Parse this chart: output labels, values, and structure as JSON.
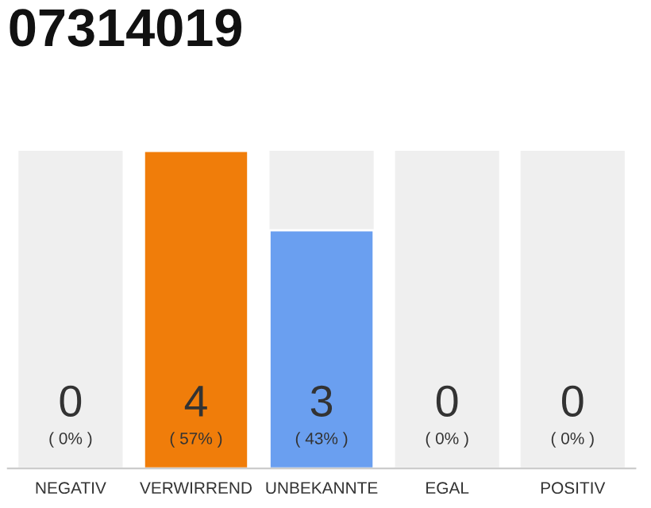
{
  "chart_data": {
    "type": "bar",
    "title": "07314019",
    "categories": [
      "NEGATIV",
      "VERWIRREND",
      "UNBEKANNTE",
      "EGAL",
      "POSITIV"
    ],
    "values": [
      0,
      4,
      3,
      0,
      0
    ],
    "colors": [
      null,
      "#f07d0a",
      "#6a9ff0",
      null,
      null
    ],
    "value_labels": [
      "0\n( 0% )",
      "4\n( 57% )",
      "3\n( 43% )",
      "0\n( 0% )",
      "0\n( 0% )"
    ],
    "grid": false,
    "legend": false
  }
}
